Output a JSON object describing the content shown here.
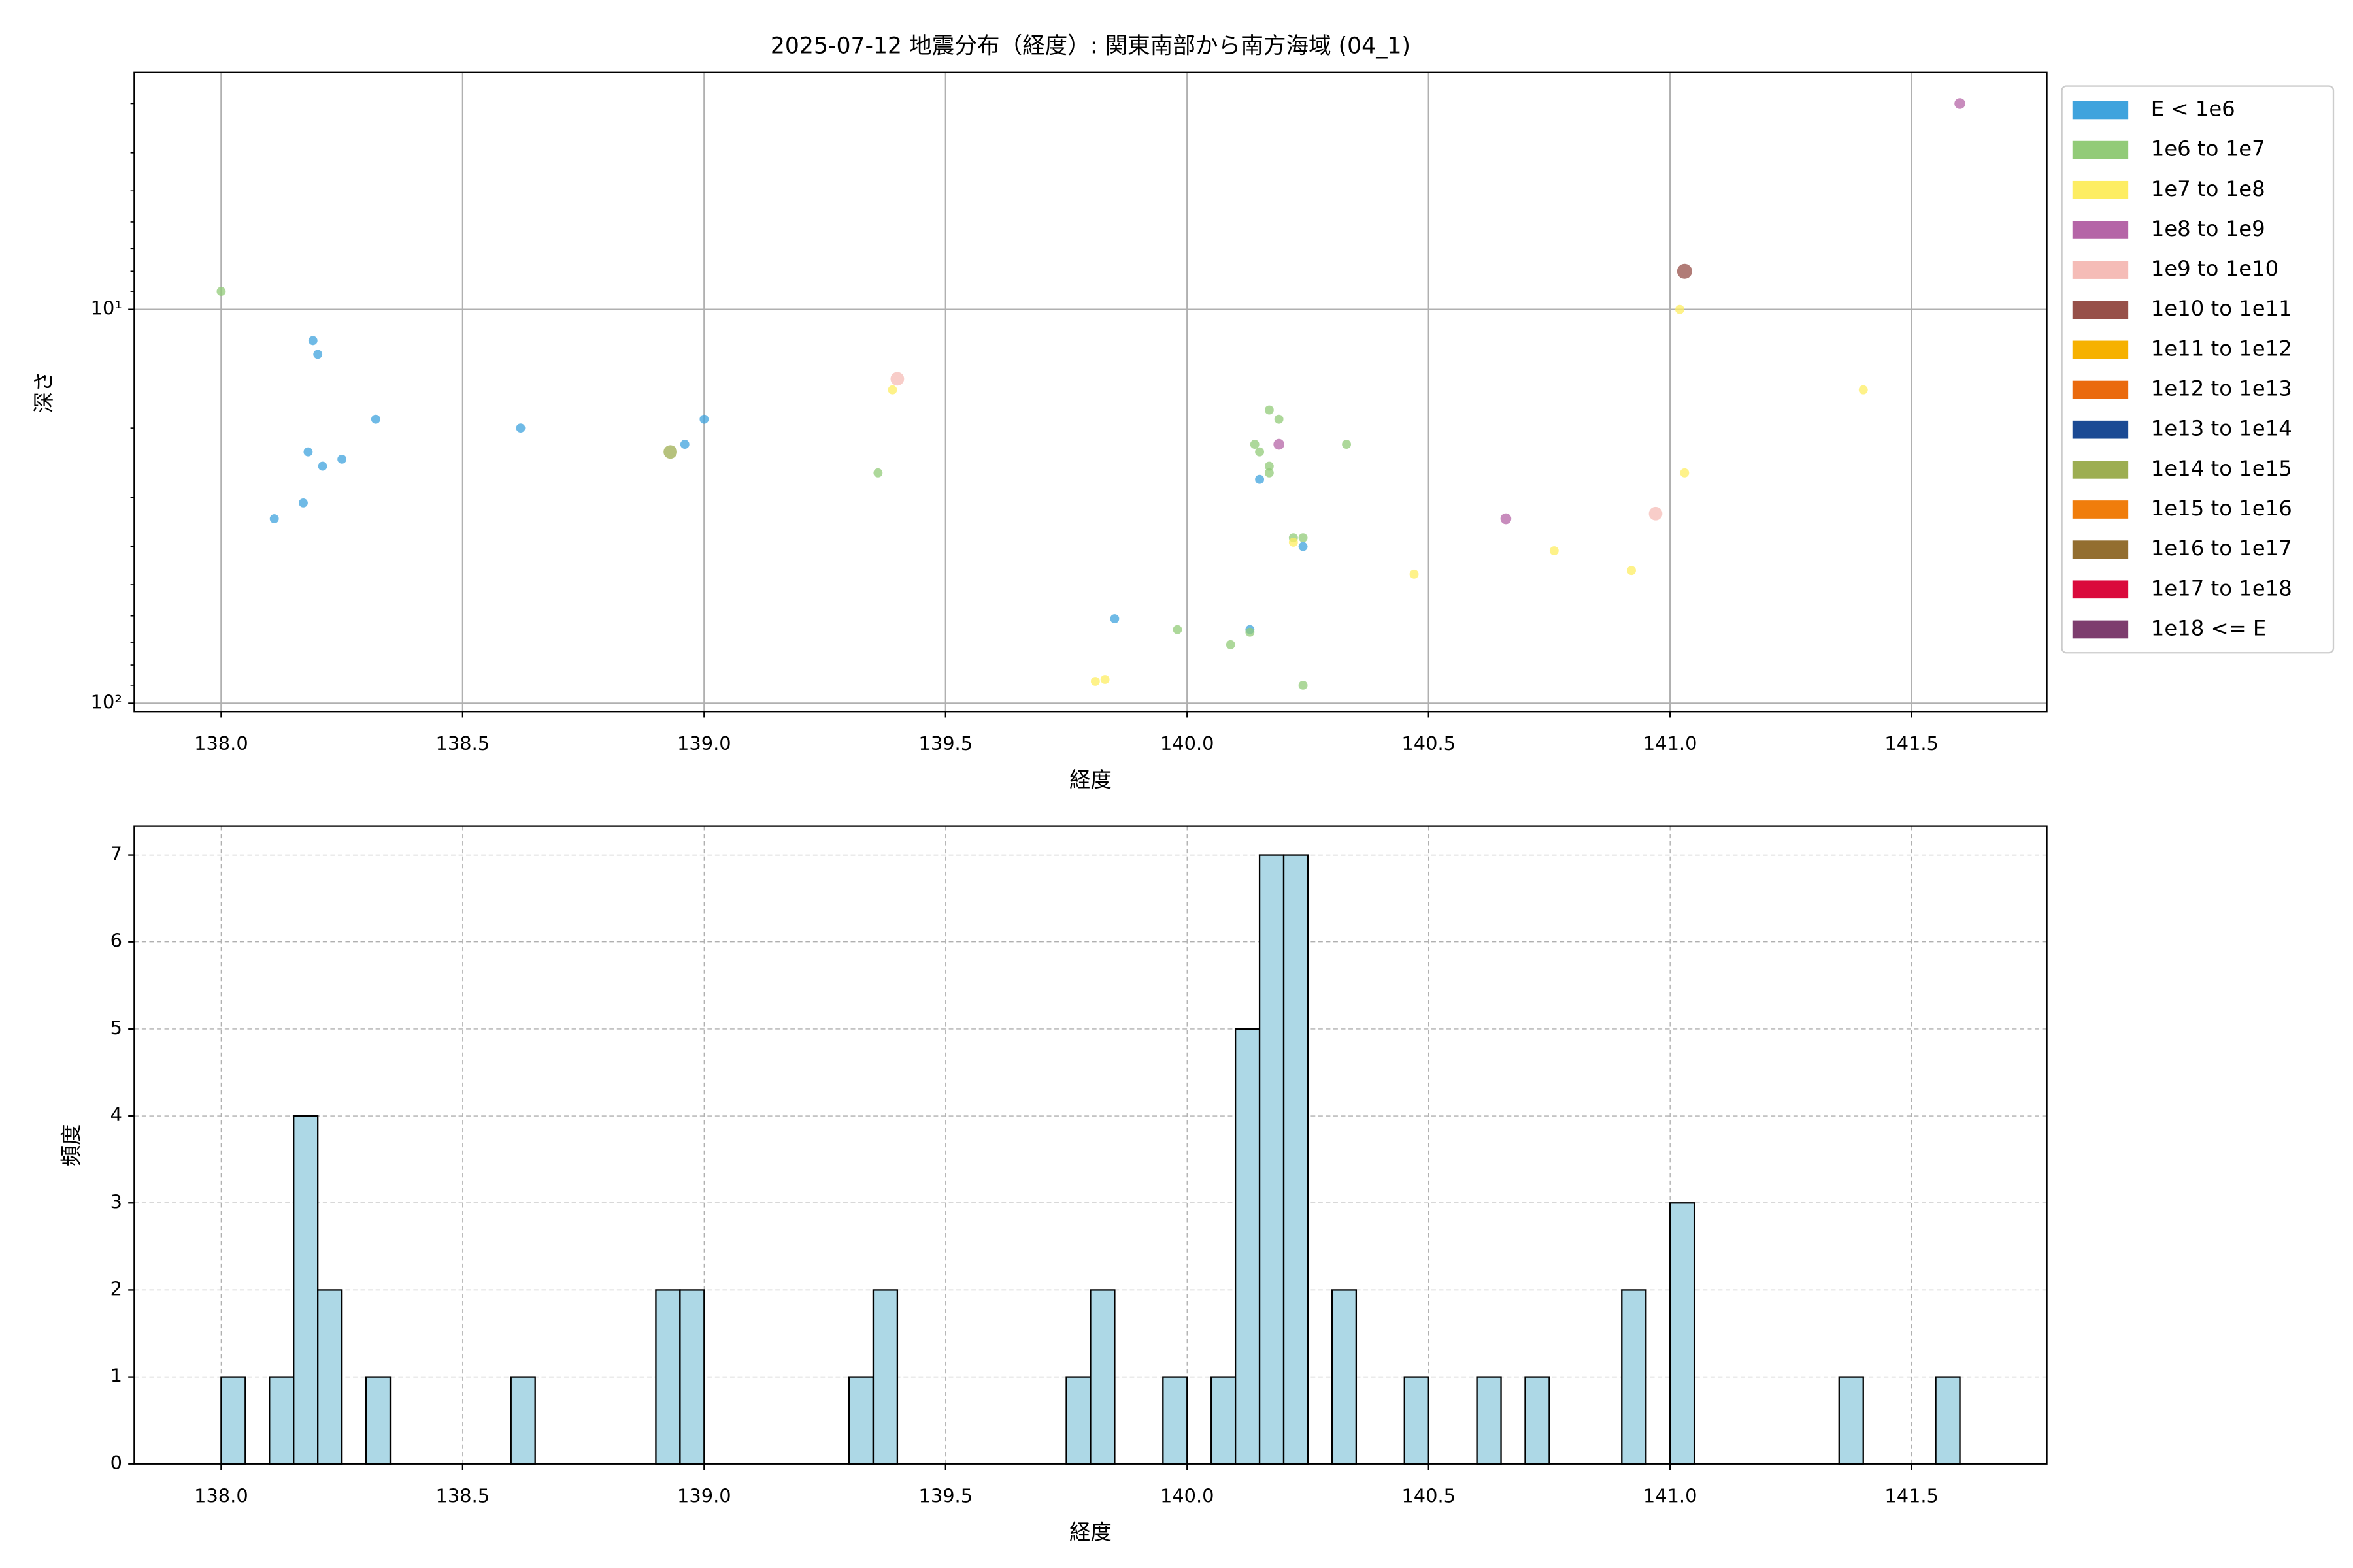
{
  "chart_data": [
    {
      "type": "scatter",
      "title": "2025-07-12 地震分布（経度）: 関東南部から南方海域 (04_1)",
      "xlabel": "経度",
      "ylabel": "深さ",
      "xlim": [
        137.82,
        141.78
      ],
      "xticks": [
        {
          "value": 138,
          "label": "138.0"
        },
        138.5,
        {
          "value": 139,
          "label": "139.0"
        },
        139.5,
        {
          "value": 140,
          "label": "140.0"
        },
        140.5,
        {
          "value": 141,
          "label": "141.0"
        },
        141.5
      ],
      "ylim": [
        2.5,
        105
      ],
      "yscale": "log",
      "yinvert": true,
      "yticks": [
        {
          "value": 10,
          "label": "10¹"
        },
        {
          "value": 100,
          "label": "10²"
        }
      ],
      "yminorticks": [
        3,
        4,
        5,
        6,
        7,
        8,
        9,
        20,
        30,
        40,
        50,
        60,
        70,
        80,
        90
      ],
      "grid": true,
      "series": [
        {
          "name": "E < 1e6",
          "color": "#3fa3dd",
          "marker_size": 3,
          "x": [
            138.19,
            138.2,
            138.32,
            138.18,
            138.21,
            138.25,
            138.17,
            138.11,
            138.62,
            138.96,
            139.0,
            139.85,
            140.13,
            140.15,
            140.24
          ],
          "y": [
            12,
            13,
            19,
            23,
            25,
            24,
            31,
            34,
            20,
            22,
            19,
            61,
            65,
            27,
            40
          ]
        },
        {
          "name": "1e6 to 1e7",
          "color": "#92cb78",
          "marker_size": 3,
          "x": [
            138.0,
            139.36,
            139.98,
            140.09,
            140.13,
            140.17,
            140.19,
            140.14,
            140.15,
            140.17,
            140.17,
            140.22,
            140.24,
            140.24,
            140.33
          ],
          "y": [
            9,
            26,
            65,
            71,
            66,
            18,
            19,
            22,
            23,
            25,
            26,
            38,
            38,
            90,
            22
          ]
        },
        {
          "name": "1e7 to 1e8",
          "color": "#fded62",
          "marker_size": 3,
          "x": [
            139.39,
            139.81,
            139.83,
            140.22,
            140.47,
            140.76,
            140.92,
            141.02,
            141.03,
            141.4
          ],
          "y": [
            16,
            88,
            87,
            39,
            47,
            41,
            46,
            10,
            26,
            16
          ]
        },
        {
          "name": "1e8 to 1e9",
          "color": "#b565a7",
          "marker_size": 3.6,
          "x": [
            140.19,
            140.66,
            141.6
          ],
          "y": [
            22,
            34,
            3
          ]
        },
        {
          "name": "1e9 to 1e10",
          "color": "#f5bcb7",
          "marker_size": 4.5,
          "x": [
            139.4,
            140.97
          ],
          "y": [
            15,
            33
          ]
        },
        {
          "name": "1e10 to 1e11",
          "color": "#975049",
          "marker_size": 5,
          "x": [
            141.03
          ],
          "y": [
            8
          ]
        },
        {
          "name": "1e11 to 1e12",
          "color": "#f6b100",
          "x": [],
          "y": []
        },
        {
          "name": "1e12 to 1e13",
          "color": "#ea6a0e",
          "x": [],
          "y": []
        },
        {
          "name": "1e13 to 1e14",
          "color": "#1b4a94",
          "x": [],
          "y": []
        },
        {
          "name": "1e14 to 1e15",
          "color": "#9dae52",
          "marker_size": 4.5,
          "x": [
            138.93
          ],
          "y": [
            23
          ]
        },
        {
          "name": "1e15 to 1e16",
          "color": "#f07d0c",
          "x": [],
          "y": []
        },
        {
          "name": "1e16 to 1e17",
          "color": "#936e30",
          "x": [],
          "y": []
        },
        {
          "name": "1e17 to 1e18",
          "color": "#da0a3c",
          "x": [],
          "y": []
        },
        {
          "name": "1e18 <= E",
          "color": "#7d3d6e",
          "x": [],
          "y": []
        }
      ]
    },
    {
      "type": "histogram",
      "xlabel": "経度",
      "ylabel": "頻度",
      "color": "#add8e6",
      "edgecolor": "#000000",
      "xlim": [
        137.82,
        141.78
      ],
      "xticks": [
        {
          "value": 138,
          "label": "138.0"
        },
        138.5,
        {
          "value": 139,
          "label": "139.0"
        },
        139.5,
        {
          "value": 140,
          "label": "140.0"
        },
        140.5,
        {
          "value": 141,
          "label": "141.0"
        },
        141.5
      ],
      "ylim": [
        0,
        7.33
      ],
      "yticks": [
        0,
        1,
        2,
        3,
        4,
        5,
        6,
        7
      ],
      "grid": true,
      "grid_style": "dashed",
      "bins": [
        138.0,
        138.05,
        138.1,
        138.15,
        138.2,
        138.25,
        138.3,
        138.35,
        138.4,
        138.45,
        138.5,
        138.55,
        138.6,
        138.65,
        138.7,
        138.75,
        138.8,
        138.85,
        138.9,
        138.95,
        139.0,
        139.05,
        139.1,
        139.15,
        139.2,
        139.25,
        139.3,
        139.35,
        139.4,
        139.45,
        139.5,
        139.55,
        139.6,
        139.65,
        139.7,
        139.75,
        139.8,
        139.85,
        139.9,
        139.95,
        140.0,
        140.05,
        140.1,
        140.15,
        140.2,
        140.25,
        140.3,
        140.35,
        140.4,
        140.45,
        140.5,
        140.55,
        140.6,
        140.65,
        140.7,
        140.75,
        140.8,
        140.85,
        140.9,
        140.95,
        141.0,
        141.05,
        141.1,
        141.15,
        141.2,
        141.25,
        141.3,
        141.35,
        141.4,
        141.45,
        141.5,
        141.55,
        141.6
      ],
      "counts": [
        1,
        0,
        1,
        4,
        2,
        0,
        1,
        0,
        0,
        0,
        0,
        0,
        1,
        0,
        0,
        0,
        0,
        0,
        2,
        2,
        0,
        0,
        0,
        0,
        0,
        0,
        1,
        2,
        0,
        0,
        0,
        0,
        0,
        0,
        0,
        1,
        2,
        0,
        0,
        1,
        0,
        1,
        5,
        7,
        7,
        0,
        2,
        0,
        0,
        1,
        0,
        0,
        1,
        0,
        1,
        0,
        0,
        0,
        2,
        0,
        3,
        0,
        0,
        0,
        0,
        0,
        0,
        1,
        0,
        0,
        0,
        1
      ]
    }
  ]
}
